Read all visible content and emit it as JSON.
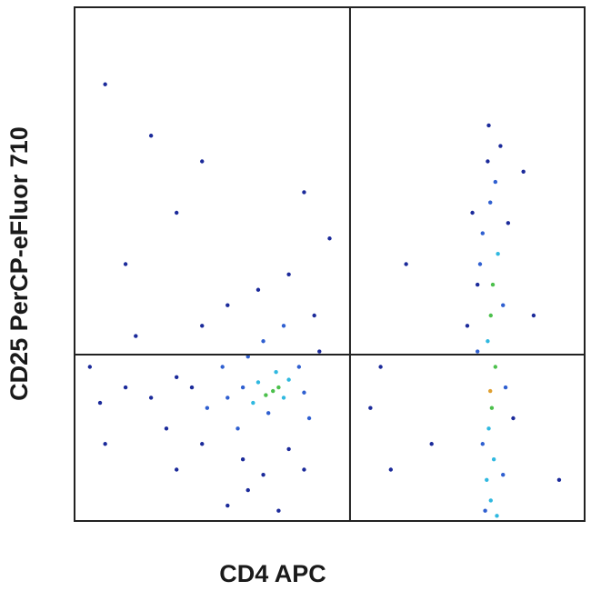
{
  "chart_data": {
    "type": "scatter",
    "xlabel": "CD4 APC",
    "ylabel": "CD25 PerCP-eFluor 710",
    "xlim": [
      0,
      1000
    ],
    "ylim": [
      0,
      1000
    ],
    "gates": {
      "x": 540,
      "y": 324
    },
    "groups": [
      {
        "color": "#1b2a9a",
        "x": [
          230,
          200,
          150,
          100,
          50,
          30,
          180,
          250,
          330,
          370,
          340,
          300,
          420,
          450,
          480,
          360,
          300,
          420,
          250,
          120,
          60,
          200,
          400,
          470,
          810,
          835,
          780,
          850,
          770,
          860,
          790,
          812,
          600,
          650,
          700,
          580,
          900,
          100,
          200,
          150,
          60,
          250,
          450,
          500,
          620,
          950,
          880
        ],
        "values": [
          260,
          280,
          240,
          260,
          230,
          300,
          180,
          150,
          120,
          90,
          60,
          30,
          140,
          100,
          330,
          450,
          420,
          480,
          380,
          360,
          150,
          100,
          20,
          400,
          700,
          730,
          600,
          580,
          380,
          200,
          460,
          770,
          300,
          500,
          150,
          220,
          400,
          500,
          600,
          750,
          850,
          700,
          640,
          550,
          100,
          80,
          680
        ]
      },
      {
        "color": "#2f5fd0",
        "x": [
          380,
          330,
          450,
          300,
          440,
          340,
          370,
          410,
          320,
          290,
          460,
          260,
          800,
          815,
          825,
          795,
          840,
          790,
          845,
          800,
          840,
          805
        ],
        "values": [
          210,
          260,
          250,
          240,
          300,
          320,
          350,
          380,
          180,
          300,
          200,
          220,
          560,
          620,
          660,
          500,
          420,
          330,
          260,
          150,
          90,
          20
        ]
      },
      {
        "color": "#2fb8e0",
        "x": [
          410,
          360,
          420,
          350,
          395,
          810,
          812,
          822,
          808,
          816,
          830,
          828
        ],
        "values": [
          240,
          270,
          275,
          230,
          290,
          350,
          180,
          120,
          80,
          40,
          520,
          10
        ]
      },
      {
        "color": "#4cc04c",
        "x": [
          389,
          400,
          375,
          816,
          820,
          825,
          818
        ],
        "values": [
          253,
          260,
          245,
          400,
          460,
          300,
          220
        ]
      },
      {
        "color": "#e0a030",
        "x": [
          815
        ],
        "values": [
          253
        ]
      }
    ]
  }
}
